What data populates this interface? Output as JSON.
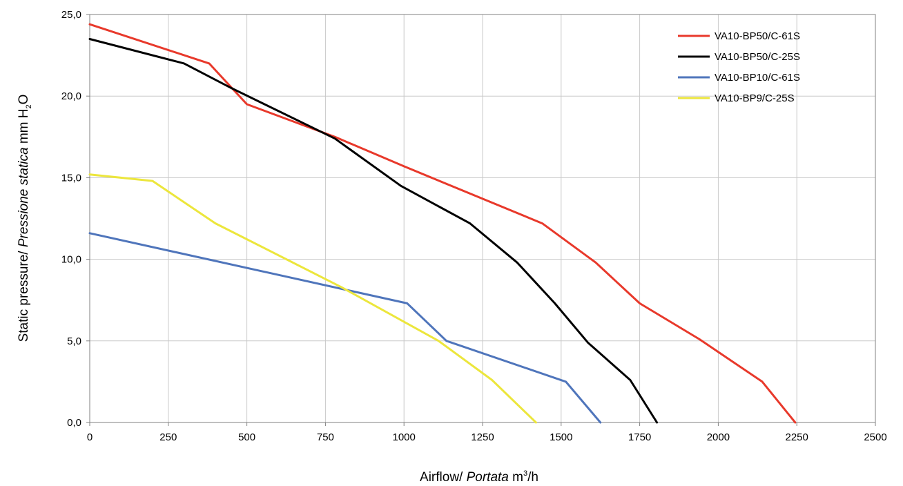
{
  "chart_data": {
    "type": "line",
    "xlabel": {
      "main": "Airflow",
      "italic": "Portata",
      "unit": "m",
      "sup": "3",
      "unit_tail": "h"
    },
    "ylabel": {
      "main": "Static pressure",
      "italic": "Pressione statica",
      "unit": "mm",
      "h": "H",
      "sub": "2",
      "o": "O"
    },
    "xlim": [
      0,
      2500
    ],
    "ylim": [
      0,
      25
    ],
    "xticks": [
      "0",
      "250",
      "500",
      "750",
      "1000",
      "1250",
      "1500",
      "1750",
      "2000",
      "2250",
      "2500"
    ],
    "yticks": [
      "0,0",
      "5,0",
      "10,0",
      "15,0",
      "20,0",
      "25,0"
    ],
    "grid": true,
    "legend_position": "top-right",
    "series": [
      {
        "name": "VA10-BP50/C-61S",
        "color": "#e8392b",
        "x": [
          0,
          380,
          500,
          780,
          1000,
          1440,
          1610,
          1750,
          1940,
          2140,
          2245
        ],
        "y": [
          24.4,
          22.0,
          19.5,
          17.5,
          15.7,
          12.2,
          9.8,
          7.3,
          5.1,
          2.5,
          0.0
        ]
      },
      {
        "name": "VA10-BP50/C-25S",
        "color": "#000000",
        "x": [
          0,
          300,
          450,
          780,
          990,
          1210,
          1360,
          1480,
          1585,
          1720,
          1805
        ],
        "y": [
          23.5,
          22.0,
          20.5,
          17.4,
          14.5,
          12.2,
          9.8,
          7.3,
          4.9,
          2.6,
          0.0
        ]
      },
      {
        "name": "VA10-BP10/C-61S",
        "color": "#4f75bb",
        "x": [
          0,
          1010,
          1135,
          1515,
          1625
        ],
        "y": [
          11.6,
          7.3,
          5.0,
          2.5,
          0.0
        ]
      },
      {
        "name": "VA10-BP9/C-25S",
        "color": "#ece63c",
        "x": [
          0,
          200,
          400,
          800,
          1110,
          1280,
          1420
        ],
        "y": [
          15.2,
          14.8,
          12.2,
          8.3,
          5.0,
          2.6,
          0.0
        ]
      }
    ]
  }
}
